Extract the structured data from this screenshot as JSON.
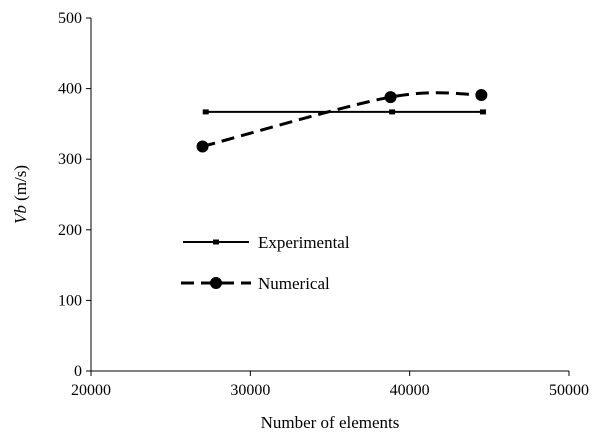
{
  "chart_data": {
    "type": "line",
    "title": "",
    "xlabel": "Number of elements",
    "ylabel_main": "Vb",
    "ylabel_unit": " (m/s)",
    "xlim": [
      20000,
      50000
    ],
    "ylim": [
      0,
      500
    ],
    "xticks": [
      20000,
      30000,
      40000,
      50000
    ],
    "yticks": [
      0,
      100,
      200,
      300,
      400,
      500
    ],
    "grid": false,
    "legend_position": "center-left",
    "series": [
      {
        "name": "Experimental",
        "style": "solid",
        "marker": "small-square",
        "color": "#000000",
        "x": [
          27200,
          38900,
          44600
        ],
        "y": [
          367,
          367,
          367
        ]
      },
      {
        "name": "Numerical",
        "style": "dashed",
        "marker": "circle",
        "color": "#000000",
        "x": [
          27000,
          38800,
          44500
        ],
        "y": [
          318,
          388,
          391
        ]
      }
    ]
  }
}
